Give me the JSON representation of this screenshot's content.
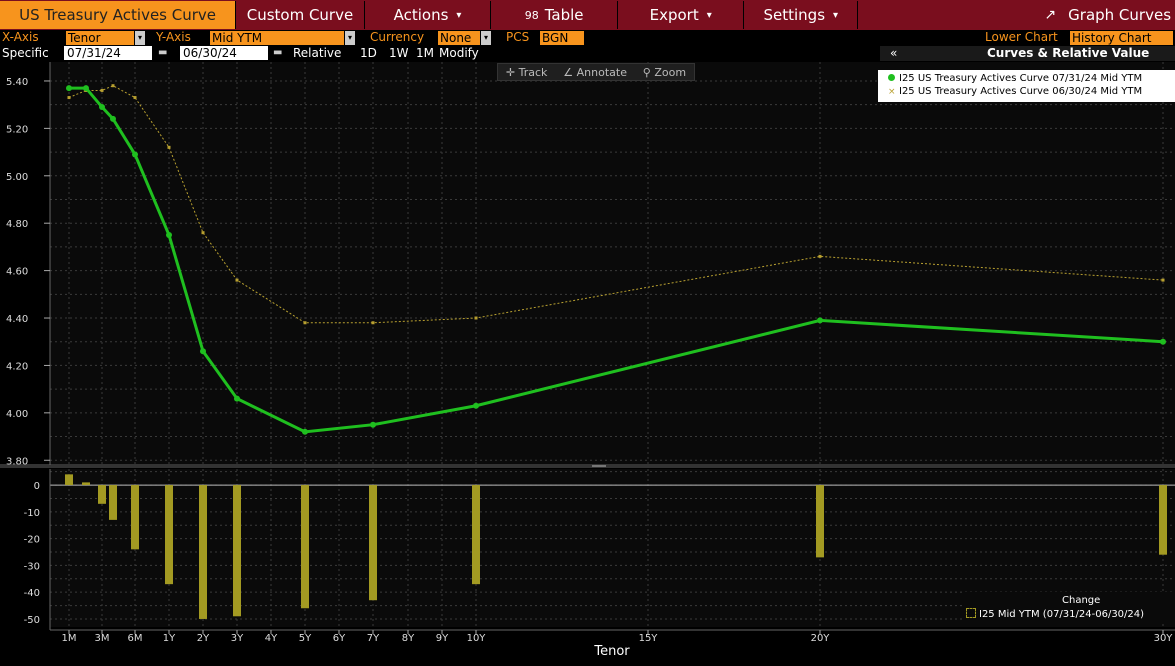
{
  "topbar": {
    "title": "US Treasury Actives Curve",
    "custom_curve": "Custom Curve",
    "actions": "Actions",
    "table_num": "98",
    "table": "Table",
    "export": "Export",
    "settings": "Settings",
    "graph_curves": "Graph Curves"
  },
  "controls": {
    "xaxis_label": "X-Axis",
    "xaxis_value": "Tenor",
    "yaxis_label": "Y-Axis",
    "yaxis_value": "Mid YTM",
    "currency_label": "Currency",
    "currency_value": "None",
    "pcs_label": "PCS",
    "pcs_value": "BGN",
    "lower_chart_label": "Lower Chart",
    "lower_chart_value": "History Chart",
    "specific_label": "Specific",
    "date1": "07/31/24",
    "date2": "06/30/24",
    "relative_label": "Relative",
    "rel_1d": "1D",
    "rel_1w": "1W",
    "rel_1m": "1M",
    "modify": "Modify",
    "collapse": "«",
    "panel_title": "Curves & Relative Value"
  },
  "mini_toolbar": {
    "track": "Track",
    "annotate": "Annotate",
    "zoom": "Zoom"
  },
  "legend": {
    "series1": "I25 US Treasury Actives Curve 07/31/24 Mid YTM",
    "series2": "I25 US Treasury Actives Curve 06/30/24 Mid YTM",
    "series1_color": "#1fbf1f",
    "series2_color": "#b8a030"
  },
  "change_legend": {
    "title": "Change",
    "label": "I25 Mid YTM (07/31/24-06/30/24)"
  },
  "colors": {
    "accent": "#f7941d",
    "topbar": "#7a0e1e",
    "bars": "#a39a22"
  },
  "chart_data": [
    {
      "type": "line",
      "xlabel": "Tenor",
      "x_ticks": [
        "1M",
        "3M",
        "6M",
        "1Y",
        "2Y",
        "3Y",
        "4Y",
        "5Y",
        "6Y",
        "7Y",
        "8Y",
        "9Y",
        "10Y",
        "15Y",
        "20Y",
        "30Y"
      ],
      "ylim": [
        3.78,
        5.48
      ],
      "y_ticks": [
        "3.80",
        "4.00",
        "4.20",
        "4.40",
        "4.60",
        "4.80",
        "5.00",
        "5.20",
        "5.40"
      ],
      "grid": true,
      "legend_position": "top-right",
      "series": [
        {
          "name": "I25 US Treasury Actives Curve 07/31/24 Mid YTM",
          "x": [
            "1M",
            "2M",
            "3M",
            "4M",
            "6M",
            "1Y",
            "2Y",
            "3Y",
            "5Y",
            "7Y",
            "10Y",
            "20Y",
            "30Y"
          ],
          "values": [
            5.37,
            5.37,
            5.29,
            5.24,
            5.09,
            4.75,
            4.26,
            4.06,
            3.92,
            3.95,
            4.03,
            4.39,
            4.3
          ]
        },
        {
          "name": "I25 US Treasury Actives Curve 06/30/24 Mid YTM",
          "x": [
            "1M",
            "2M",
            "3M",
            "4M",
            "6M",
            "1Y",
            "2Y",
            "3Y",
            "5Y",
            "7Y",
            "10Y",
            "20Y",
            "30Y"
          ],
          "values": [
            5.33,
            5.36,
            5.36,
            5.38,
            5.33,
            5.12,
            4.76,
            4.56,
            4.38,
            4.38,
            4.4,
            4.66,
            4.56
          ]
        }
      ]
    },
    {
      "type": "bar",
      "name": "Change",
      "ylim": [
        -53,
        6
      ],
      "y_ticks": [
        "-50",
        "-40",
        "-30",
        "-20",
        "-10",
        "0"
      ],
      "grid": true,
      "legend_position": "bottom-right",
      "series": [
        {
          "name": "I25 Mid YTM (07/31/24-06/30/24)",
          "x": [
            "1M",
            "2M",
            "3M",
            "4M",
            "6M",
            "1Y",
            "2Y",
            "3Y",
            "5Y",
            "7Y",
            "10Y",
            "20Y",
            "30Y"
          ],
          "values": [
            4,
            1,
            -7,
            -13,
            -24,
            -37,
            -50,
            -49,
            -46,
            -43,
            -37,
            -27,
            -26
          ]
        }
      ]
    }
  ]
}
